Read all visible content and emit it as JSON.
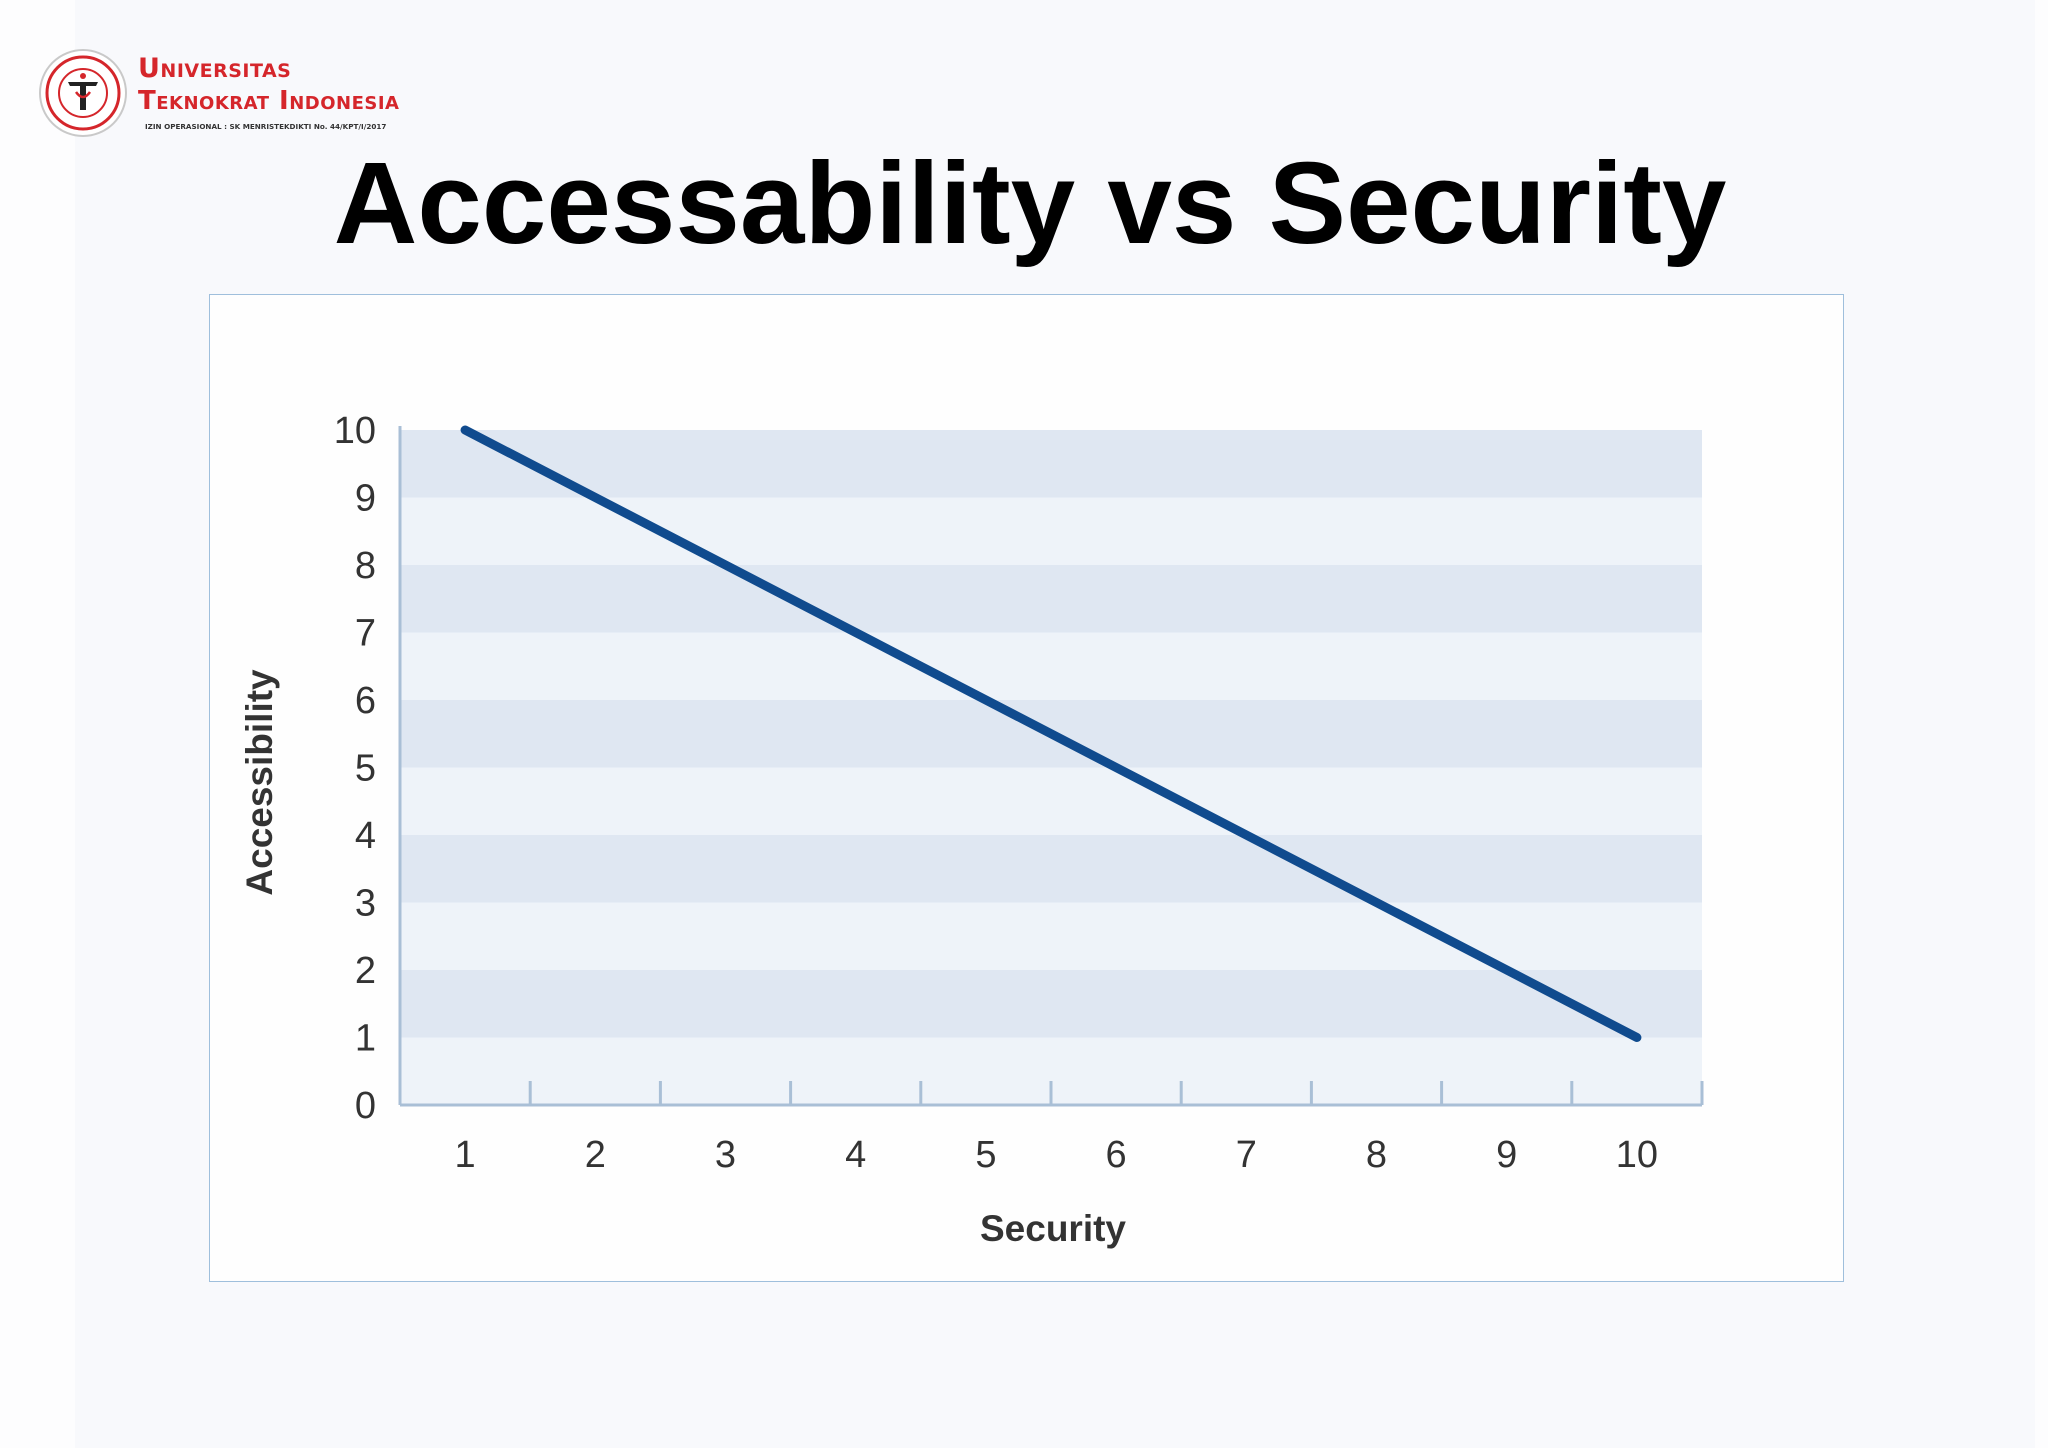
{
  "header": {
    "brand_line1": "Universitas",
    "brand_line2": "Teknokrat Indonesia",
    "permit": "IZIN OPERASIONAL : SK MENRISTEKDIKTI No. 44/KPT/I/2017",
    "seal_text_top": "UNIVERSITAS TEKNOKRAT",
    "seal_text_bottom": "INDONESIA",
    "brand_color": "#d5262b"
  },
  "page": {
    "title": "Accessability vs Security"
  },
  "chart_data": {
    "type": "line",
    "title": "",
    "xlabel": "Security",
    "ylabel": "Accessibility",
    "x_ticks": [
      "1",
      "2",
      "3",
      "4",
      "5",
      "6",
      "7",
      "8",
      "9",
      "10"
    ],
    "y_ticks": [
      "0",
      "1",
      "2",
      "3",
      "4",
      "5",
      "6",
      "7",
      "8",
      "9",
      "10"
    ],
    "xlim": [
      0.5,
      10.5
    ],
    "ylim": [
      0,
      10
    ],
    "grid": "alternating horizontal bands",
    "legend": "none",
    "series": [
      {
        "x": [
          1,
          10
        ],
        "y": [
          10,
          1
        ],
        "color": "#104b8e"
      }
    ],
    "colors": {
      "band_dark": "#dfe7f2",
      "band_light": "#eef3f9",
      "axis": "#a9bfd6",
      "tick_label": "#333333"
    }
  }
}
